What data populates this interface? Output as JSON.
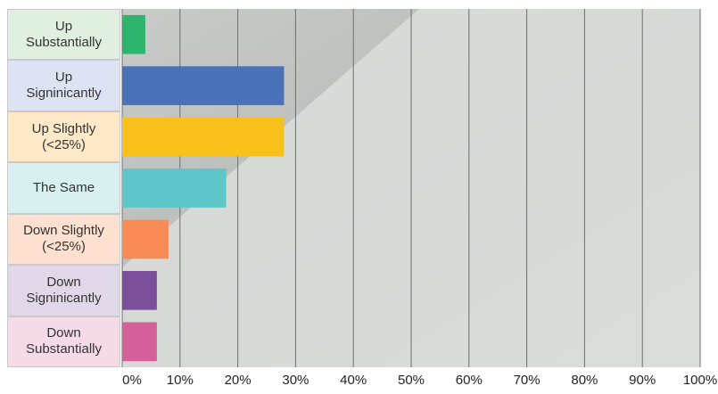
{
  "chart_data": {
    "type": "hbar",
    "categories": [
      "Up Substantially",
      "Up Signinicantly",
      "Up Slightly (<25%)",
      "The Same",
      "Down Slightly (<25%)",
      "Down Signinicantly",
      "Down Substantially"
    ],
    "values": [
      4,
      28,
      28,
      18,
      8,
      6,
      6
    ],
    "colors": [
      "#2db56e",
      "#4a72b8",
      "#f9bf1a",
      "#5ec6c8",
      "#f78a55",
      "#7b4f9a",
      "#d6609a"
    ],
    "label_backgrounds": [
      "#dff0e0",
      "#dde3f2",
      "#fde9c8",
      "#d9f0f1",
      "#fde0d0",
      "#e0d8e8",
      "#f5dbe6"
    ],
    "xlim": [
      0,
      100
    ],
    "xticks": [
      {
        "value": 0,
        "label": "0%"
      },
      {
        "value": 10,
        "label": "10%"
      },
      {
        "value": 20,
        "label": "20%"
      },
      {
        "value": 30,
        "label": "30%"
      },
      {
        "value": 40,
        "label": "40%"
      },
      {
        "value": 50,
        "label": "50%"
      },
      {
        "value": 60,
        "label": "60%"
      },
      {
        "value": 70,
        "label": "70%"
      },
      {
        "value": 80,
        "label": "80%"
      },
      {
        "value": 90,
        "label": "90%"
      },
      {
        "value": 100,
        "label": "100%"
      }
    ],
    "grid": true
  }
}
